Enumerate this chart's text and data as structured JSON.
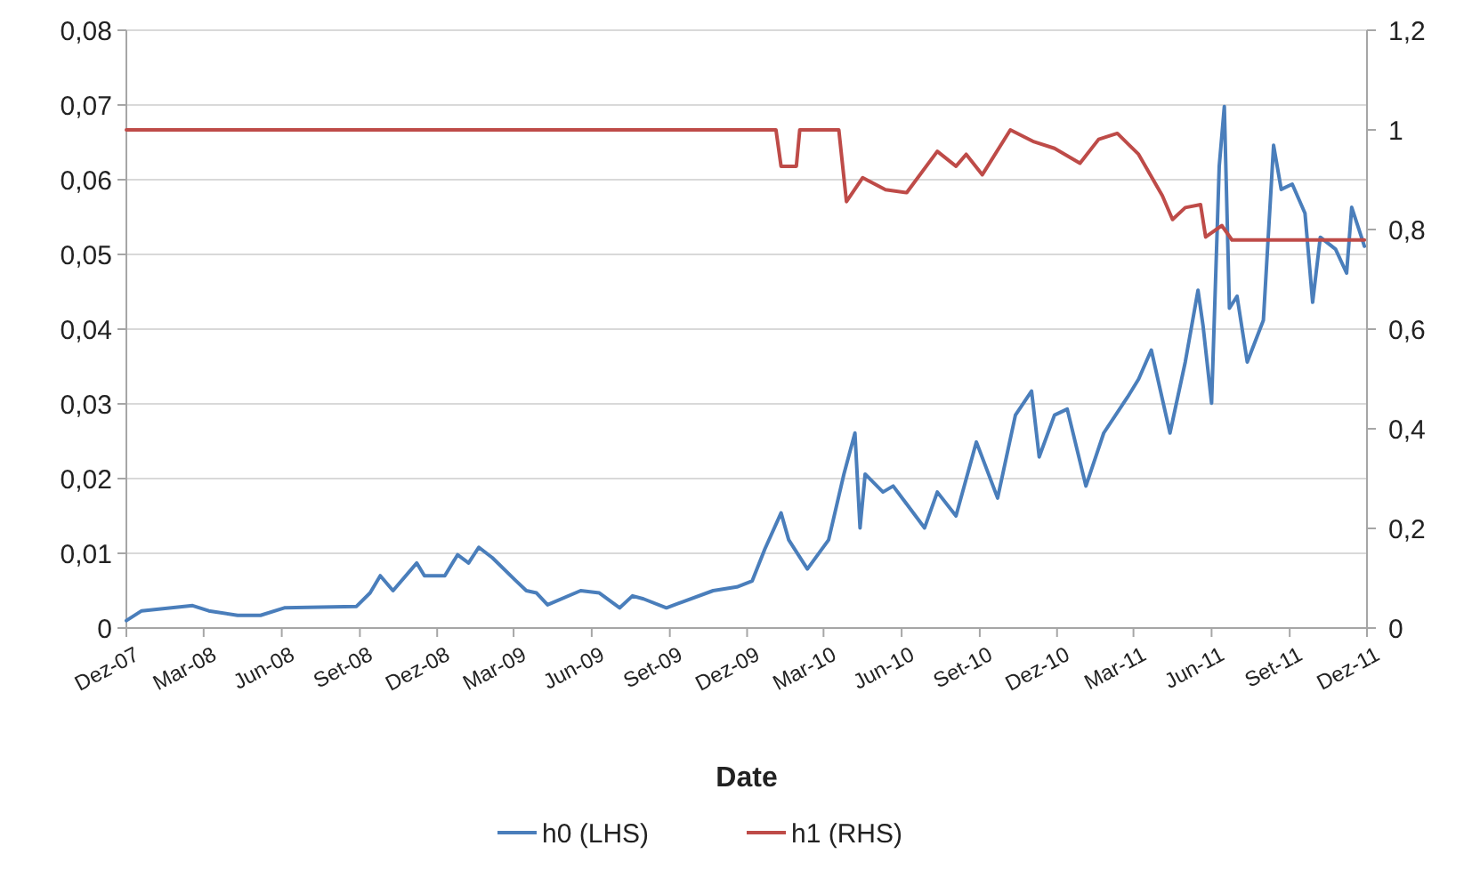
{
  "chart_data": {
    "type": "line",
    "xlabel": "Date",
    "x": [
      "2007-12-01",
      "2007-12-19",
      "2008-02-17",
      "2008-03-07",
      "2008-04-10",
      "2008-05-07",
      "2008-06-04",
      "2008-08-28",
      "2008-09-13",
      "2008-09-25",
      "2008-10-10",
      "2008-11-07",
      "2008-11-16",
      "2008-12-10",
      "2008-12-25",
      "2009-01-07",
      "2009-01-19",
      "2009-02-04",
      "2009-03-04",
      "2009-03-16",
      "2009-03-28",
      "2009-04-10",
      "2009-05-19",
      "2009-06-10",
      "2009-07-04",
      "2009-07-19",
      "2009-08-01",
      "2009-08-28",
      "2009-09-16",
      "2009-10-22",
      "2009-11-19",
      "2009-12-07",
      "2009-12-22",
      "2010-01-10",
      "2010-01-19",
      "2010-02-10",
      "2010-03-07",
      "2010-03-25",
      "2010-04-07",
      "2010-04-13",
      "2010-04-19",
      "2010-05-10",
      "2010-05-22",
      "2010-06-28",
      "2010-07-13",
      "2010-08-04",
      "2010-08-28",
      "2010-09-22",
      "2010-10-13",
      "2010-11-01",
      "2010-11-10",
      "2010-11-28",
      "2010-12-13",
      "2011-01-04",
      "2011-01-25",
      "2011-02-22",
      "2011-03-07",
      "2011-03-22",
      "2011-04-13",
      "2011-05-01",
      "2011-05-16",
      "2011-05-22",
      "2011-06-01",
      "2011-06-10",
      "2011-06-16",
      "2011-06-22",
      "2011-07-01",
      "2011-07-13",
      "2011-08-01",
      "2011-08-13",
      "2011-08-22",
      "2011-09-04",
      "2011-09-19",
      "2011-09-28",
      "2011-10-07",
      "2011-10-25",
      "2011-11-07",
      "2011-11-13",
      "2011-11-28"
    ],
    "series": [
      {
        "name": "h0 (LHS)",
        "color": "#4a7ebb",
        "values": [
          0.001,
          0.0023,
          0.003,
          0.0023,
          0.0017,
          0.0017,
          0.0027,
          0.0029,
          0.0047,
          0.007,
          0.005,
          0.0087,
          0.007,
          0.007,
          0.0098,
          0.0087,
          0.0108,
          0.0094,
          0.0063,
          0.005,
          0.0047,
          0.0031,
          0.005,
          0.0047,
          0.0027,
          0.0043,
          0.0039,
          0.0027,
          0.0035,
          0.005,
          0.0055,
          0.0063,
          0.0106,
          0.0154,
          0.0118,
          0.0079,
          0.0118,
          0.0206,
          0.0261,
          0.0134,
          0.0206,
          0.0182,
          0.019,
          0.0134,
          0.0182,
          0.015,
          0.0249,
          0.0174,
          0.0285,
          0.0317,
          0.0229,
          0.0285,
          0.0293,
          0.019,
          0.0261,
          0.0309,
          0.0333,
          0.0372,
          0.0261,
          0.0356,
          0.0452,
          0.0404,
          0.0301,
          0.0618,
          0.0698,
          0.0428,
          0.0444,
          0.0356,
          0.0412,
          0.0646,
          0.0587,
          0.0594,
          0.0555,
          0.0436,
          0.0523,
          0.0507,
          0.0475,
          0.0563,
          0.0511
        ]
      },
      {
        "name": "h1 (RHS)",
        "color": "#be4b48",
        "axis": "y2",
        "x": [
          "2007-12-01",
          "2010-01-04",
          "2010-01-10",
          "2010-01-28",
          "2010-02-01",
          "2010-03-19",
          "2010-03-28",
          "2010-04-16",
          "2010-05-13",
          "2010-06-07",
          "2010-07-13",
          "2010-08-04",
          "2010-08-16",
          "2010-09-04",
          "2010-10-07",
          "2010-11-04",
          "2010-11-28",
          "2010-12-28",
          "2011-01-19",
          "2011-02-10",
          "2011-03-07",
          "2011-04-04",
          "2011-04-16",
          "2011-05-01",
          "2011-05-19",
          "2011-05-25",
          "2011-06-13",
          "2011-06-25",
          "2011-11-28"
        ],
        "values": [
          1,
          1,
          0.927,
          0.927,
          1,
          1,
          0.856,
          0.904,
          0.88,
          0.874,
          0.957,
          0.927,
          0.951,
          0.91,
          1,
          0.976,
          0.963,
          0.933,
          0.981,
          0.993,
          0.951,
          0.868,
          0.82,
          0.844,
          0.85,
          0.785,
          0.808,
          0.779,
          0.779
        ]
      }
    ],
    "xlim": [
      "2007-12-01",
      "2011-12-01"
    ],
    "xticks": [
      {
        "value": "2007-12-01",
        "label": "Dez-07"
      },
      {
        "value": "2008-03-01",
        "label": "Mar-08"
      },
      {
        "value": "2008-06-01",
        "label": "Jun-08"
      },
      {
        "value": "2008-09-01",
        "label": "Set-08"
      },
      {
        "value": "2008-12-01",
        "label": "Dez-08"
      },
      {
        "value": "2009-03-01",
        "label": "Mar-09"
      },
      {
        "value": "2009-06-01",
        "label": "Jun-09"
      },
      {
        "value": "2009-09-01",
        "label": "Set-09"
      },
      {
        "value": "2009-12-01",
        "label": "Dez-09"
      },
      {
        "value": "2010-03-01",
        "label": "Mar-10"
      },
      {
        "value": "2010-06-01",
        "label": "Jun-10"
      },
      {
        "value": "2010-09-01",
        "label": "Set-10"
      },
      {
        "value": "2010-12-01",
        "label": "Dez-10"
      },
      {
        "value": "2011-03-01",
        "label": "Mar-11"
      },
      {
        "value": "2011-06-01",
        "label": "Jun-11"
      },
      {
        "value": "2011-09-01",
        "label": "Set-11"
      },
      {
        "value": "2011-12-01",
        "label": "Dez-11"
      }
    ],
    "ylim": [
      0,
      0.08
    ],
    "yticks": [
      0,
      {
        "value": 0.01,
        "label": "0,01"
      },
      {
        "value": 0.02,
        "label": "0,02"
      },
      {
        "value": 0.03,
        "label": "0,03"
      },
      {
        "value": 0.04,
        "label": "0,04"
      },
      {
        "value": 0.05,
        "label": "0,05"
      },
      {
        "value": 0.06,
        "label": "0,06"
      },
      {
        "value": 0.07,
        "label": "0,07"
      },
      {
        "value": 0.08,
        "label": "0,08"
      }
    ],
    "y2lim": [
      0,
      1.2
    ],
    "y2ticks": [
      0,
      {
        "value": 0.2,
        "label": "0,2"
      },
      {
        "value": 0.4,
        "label": "0,4"
      },
      {
        "value": 0.6,
        "label": "0,6"
      },
      {
        "value": 0.8,
        "label": "0,8"
      },
      1,
      {
        "value": 1.2,
        "label": "1,2"
      }
    ],
    "grid": "y",
    "legend": "bottom",
    "marker": "none",
    "line_style": "solid"
  }
}
